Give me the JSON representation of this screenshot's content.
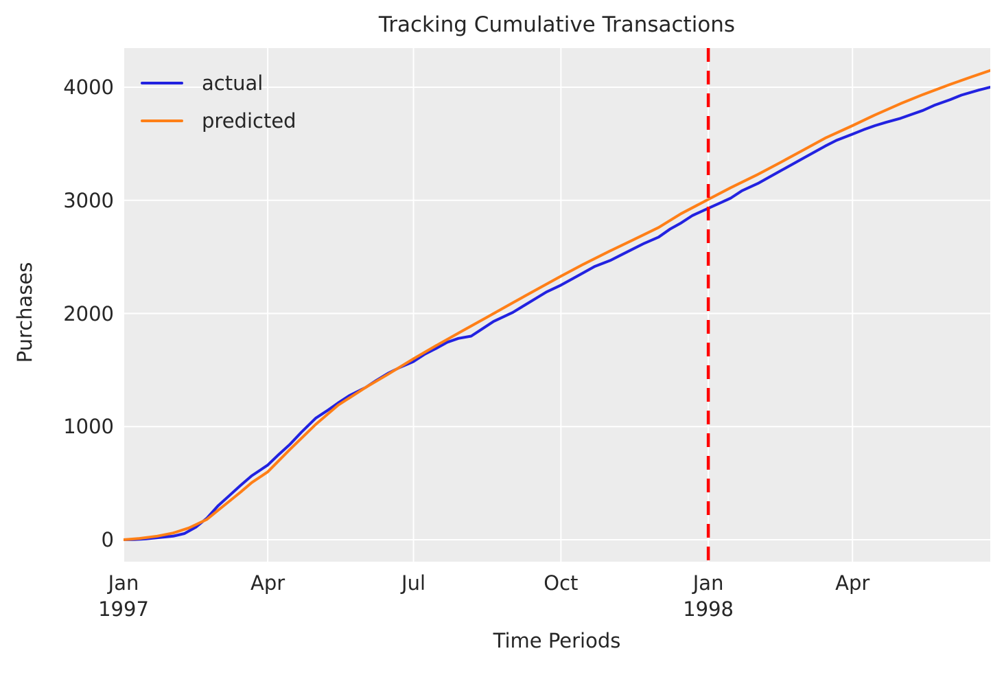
{
  "title": "Tracking Cumulative Transactions",
  "legend": {
    "items": [
      {
        "label": "actual",
        "color": "#2222e0"
      },
      {
        "label": "predicted",
        "color": "#ff7f17"
      }
    ]
  },
  "colors": {
    "plot_background": "#ececec",
    "grid": "#ffffff",
    "text": "#262626",
    "calibration_line": "#ff0000"
  },
  "chart_data": {
    "type": "line",
    "title": "Tracking Cumulative Transactions",
    "xlabel": "Time Periods",
    "ylabel": "Purchases",
    "grid": true,
    "legend_position": "upper left",
    "x_unit": "days since 1997-01-01",
    "xlim": [
      0,
      541
    ],
    "ylim": [
      -194,
      4346
    ],
    "y_gridlines": [
      {
        "value": 0,
        "label": "0"
      },
      {
        "value": 1000,
        "label": "1000"
      },
      {
        "value": 2000,
        "label": "2000"
      },
      {
        "value": 3000,
        "label": "3000"
      },
      {
        "value": 4000,
        "label": "4000"
      }
    ],
    "x_ticks": [
      {
        "day": 0,
        "label": "Jan",
        "year": "1997"
      },
      {
        "day": 90,
        "label": "Apr"
      },
      {
        "day": 181,
        "label": "Jul"
      },
      {
        "day": 273,
        "label": "Oct"
      },
      {
        "day": 365,
        "label": "Jan",
        "year": "1998"
      },
      {
        "day": 455,
        "label": "Apr"
      }
    ],
    "vline": {
      "day": 365,
      "color": "#ff0000",
      "style": "dashed",
      "width": 4.5,
      "dash": [
        20,
        13
      ]
    },
    "series": [
      {
        "name": "actual",
        "color": "#2222e0",
        "x": [
          0,
          7,
          14,
          21,
          31,
          38,
          45,
          52,
          59,
          66,
          73,
          80,
          90,
          97,
          104,
          111,
          120,
          127,
          134,
          141,
          151,
          158,
          165,
          172,
          181,
          188,
          195,
          202,
          209,
          217,
          224,
          231,
          243,
          250,
          257,
          264,
          273,
          280,
          287,
          294,
          304,
          311,
          318,
          325,
          334,
          341,
          348,
          355,
          365,
          372,
          379,
          386,
          396,
          403,
          410,
          417,
          424,
          431,
          438,
          445,
          455,
          462,
          469,
          476,
          485,
          492,
          499,
          506,
          516,
          523,
          534,
          541
        ],
        "values": [
          0,
          2,
          8,
          18,
          32,
          55,
          110,
          190,
          300,
          390,
          480,
          565,
          660,
          755,
          845,
          950,
          1075,
          1140,
          1210,
          1275,
          1345,
          1410,
          1470,
          1520,
          1575,
          1640,
          1690,
          1745,
          1780,
          1800,
          1865,
          1930,
          2010,
          2070,
          2130,
          2190,
          2250,
          2305,
          2360,
          2415,
          2470,
          2520,
          2570,
          2620,
          2675,
          2745,
          2800,
          2865,
          2930,
          2975,
          3020,
          3085,
          3150,
          3205,
          3260,
          3315,
          3370,
          3425,
          3480,
          3530,
          3585,
          3625,
          3660,
          3690,
          3725,
          3760,
          3795,
          3840,
          3890,
          3930,
          3975,
          4000
        ]
      },
      {
        "name": "predicted",
        "color": "#ff7f17",
        "x": [
          0,
          10,
          21,
          31,
          41,
          52,
          59,
          66,
          73,
          80,
          90,
          104,
          120,
          134,
          151,
          165,
          181,
          195,
          212,
          226,
          243,
          257,
          273,
          287,
          304,
          318,
          334,
          348,
          365,
          379,
          396,
          410,
          424,
          438,
          455,
          469,
          485,
          499,
          516,
          530,
          541
        ],
        "values": [
          0,
          12,
          32,
          60,
          105,
          180,
          260,
          340,
          420,
          505,
          600,
          800,
          1020,
          1190,
          1345,
          1462,
          1600,
          1715,
          1850,
          1960,
          2095,
          2205,
          2330,
          2435,
          2555,
          2650,
          2760,
          2882,
          3008,
          3112,
          3230,
          3335,
          3442,
          3550,
          3660,
          3755,
          3855,
          3935,
          4025,
          4095,
          4148
        ]
      }
    ]
  }
}
